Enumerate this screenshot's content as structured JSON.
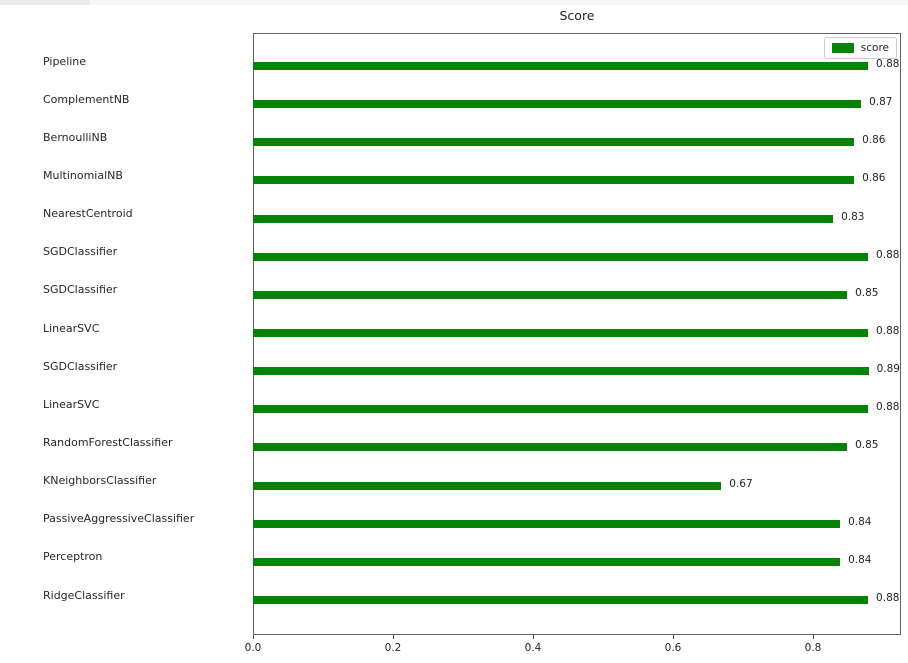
{
  "window": {
    "top_strip_present": true
  },
  "chart_data": {
    "type": "bar",
    "orientation": "horizontal",
    "title": "Score",
    "xlabel": "",
    "ylabel": "",
    "grid": false,
    "legend": {
      "label": "score",
      "position": "upper right"
    },
    "bar_color": "#068206",
    "categories": [
      "Pipeline",
      "ComplementNB",
      "BernoulliNB",
      "MultinomialNB",
      "NearestCentroid",
      "SGDClassifier",
      "SGDClassifier",
      "LinearSVC",
      "SGDClassifier",
      "LinearSVC",
      "RandomForestClassifier",
      "KNeighborsClassifier",
      "PassiveAggressiveClassifier",
      "Perceptron",
      "RidgeClassifier"
    ],
    "series": [
      {
        "name": "score",
        "values": [
          0.88,
          0.87,
          0.86,
          0.86,
          0.83,
          0.88,
          0.85,
          0.88,
          0.89,
          0.88,
          0.85,
          0.67,
          0.84,
          0.84,
          0.88
        ]
      }
    ],
    "x_tick_labels": [
      "0.0",
      "0.2",
      "0.4",
      "0.6",
      "0.8"
    ],
    "x_tick_values": [
      0.0,
      0.2,
      0.4,
      0.6,
      0.8
    ],
    "xlim": [
      0,
      0.9257
    ]
  }
}
